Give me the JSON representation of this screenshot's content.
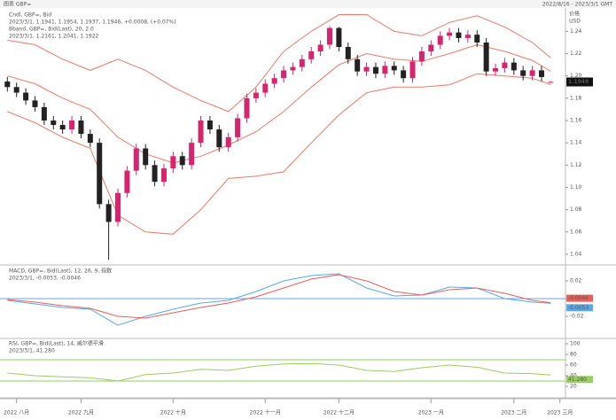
{
  "header": {
    "left": "图表 GBP=",
    "right": "2022/8/16 - 2023/3/1 GMT"
  },
  "chart_data": [
    {
      "type": "candlestick",
      "title": "Cndl, GBP=, Bid",
      "subtitle": "2023/3/1, 1.1941, 1.1954, 1.1937, 1.1946, +0.0008, (+0.07%)",
      "axis_label": "价格",
      "axis_unit": "USD",
      "price_tag": "1.1949",
      "up_color": "#d6246e",
      "down_color": "#222222",
      "xlim": [
        -0.8,
        60.6
      ],
      "ylim": [
        1.032,
        1.257
      ],
      "yticks": [
        {
          "value": 1.04,
          "label": "1.04"
        },
        {
          "value": 1.06,
          "label": "1.06"
        },
        {
          "value": 1.08,
          "label": "1.08"
        },
        {
          "value": 1.1,
          "label": "1.10"
        },
        {
          "value": 1.12,
          "label": "1.12"
        },
        {
          "value": 1.14,
          "label": "1.14"
        },
        {
          "value": 1.16,
          "label": "1.16"
        },
        {
          "value": 1.18,
          "label": "1.18"
        },
        {
          "value": 1.2,
          "label": "1.20"
        },
        {
          "value": 1.22,
          "label": "1.22"
        },
        {
          "value": 1.24,
          "label": "1.24"
        }
      ],
      "xticks": [
        {
          "value": 1,
          "label": "2022 八月"
        },
        {
          "value": 8,
          "label": "2022 九月"
        },
        {
          "value": 18,
          "label": "2022 十月"
        },
        {
          "value": 28,
          "label": "2022 十一月"
        },
        {
          "value": 36,
          "label": "2022 十二月"
        },
        {
          "value": 46,
          "label": "2023 一月"
        },
        {
          "value": 55,
          "label": "2023 二月"
        },
        {
          "value": 60,
          "label": "2023 三月"
        }
      ],
      "open": [
        1.195,
        1.19,
        1.185,
        1.178,
        1.172,
        1.16,
        1.156,
        1.152,
        1.16,
        1.148,
        1.14,
        1.085,
        1.069,
        1.095,
        1.115,
        1.135,
        1.12,
        1.105,
        1.117,
        1.128,
        1.12,
        1.14,
        1.16,
        1.152,
        1.136,
        1.145,
        1.162,
        1.18,
        1.185,
        1.193,
        1.198,
        1.205,
        1.208,
        1.215,
        1.222,
        1.228,
        1.243,
        1.226,
        1.215,
        1.204,
        1.208,
        1.202,
        1.209,
        1.205,
        1.198,
        1.213,
        1.222,
        1.228,
        1.236,
        1.239,
        1.234,
        1.237,
        1.23,
        1.204,
        1.207,
        1.212,
        1.205,
        1.2,
        1.205,
        1.1941
      ],
      "high": [
        1.199,
        1.194,
        1.189,
        1.182,
        1.176,
        1.164,
        1.16,
        1.164,
        1.164,
        1.152,
        1.144,
        1.089,
        1.099,
        1.119,
        1.139,
        1.139,
        1.124,
        1.121,
        1.132,
        1.132,
        1.144,
        1.164,
        1.164,
        1.156,
        1.149,
        1.166,
        1.184,
        1.189,
        1.197,
        1.202,
        1.209,
        1.212,
        1.219,
        1.226,
        1.232,
        1.2447,
        1.244,
        1.23,
        1.219,
        1.212,
        1.212,
        1.213,
        1.213,
        1.209,
        1.217,
        1.226,
        1.232,
        1.24,
        1.243,
        1.243,
        1.241,
        1.241,
        1.234,
        1.211,
        1.216,
        1.216,
        1.209,
        1.209,
        1.209,
        1.1954
      ],
      "low": [
        1.186,
        1.181,
        1.174,
        1.168,
        1.156,
        1.152,
        1.148,
        1.148,
        1.144,
        1.136,
        1.081,
        1.035,
        1.065,
        1.091,
        1.111,
        1.116,
        1.101,
        1.101,
        1.113,
        1.116,
        1.116,
        1.136,
        1.148,
        1.132,
        1.132,
        1.141,
        1.158,
        1.176,
        1.181,
        1.189,
        1.194,
        1.201,
        1.204,
        1.211,
        1.218,
        1.224,
        1.222,
        1.211,
        1.2,
        1.2,
        1.198,
        1.198,
        1.201,
        1.194,
        1.194,
        1.209,
        1.218,
        1.224,
        1.232,
        1.23,
        1.23,
        1.226,
        1.2,
        1.2,
        1.203,
        1.201,
        1.196,
        1.196,
        1.195,
        1.1937
      ],
      "close": [
        1.19,
        1.185,
        1.178,
        1.172,
        1.16,
        1.156,
        1.152,
        1.16,
        1.148,
        1.14,
        1.085,
        1.069,
        1.095,
        1.115,
        1.135,
        1.12,
        1.105,
        1.117,
        1.128,
        1.12,
        1.14,
        1.16,
        1.152,
        1.136,
        1.145,
        1.162,
        1.18,
        1.185,
        1.193,
        1.198,
        1.205,
        1.208,
        1.215,
        1.222,
        1.228,
        1.243,
        1.226,
        1.215,
        1.204,
        1.208,
        1.202,
        1.209,
        1.205,
        1.198,
        1.213,
        1.222,
        1.228,
        1.236,
        1.239,
        1.234,
        1.237,
        1.23,
        1.204,
        1.207,
        1.212,
        1.205,
        1.2,
        1.205,
        1.199,
        1.1946
      ],
      "overlay": {
        "name": "Bband, GBP=, Bid(Last), 20, 2.0",
        "value_text": "2023/3/1, 1.2161, 1.2041, 1.1922",
        "color": "#f07868",
        "x": [
          0,
          3,
          6,
          9,
          12,
          15,
          18,
          21,
          24,
          27,
          30,
          33,
          36,
          39,
          42,
          45,
          48,
          51,
          54,
          57,
          59
        ],
        "lines": [
          {
            "values": [
              1.232,
              1.228,
              1.215,
              1.205,
              1.215,
              1.205,
              1.19,
              1.178,
              1.168,
              1.19,
              1.222,
              1.24,
              1.255,
              1.255,
              1.24,
              1.236,
              1.248,
              1.254,
              1.244,
              1.23,
              1.2161
            ]
          },
          {
            "values": [
              1.2,
              1.193,
              1.18,
              1.17,
              1.145,
              1.13,
              1.122,
              1.128,
              1.138,
              1.15,
              1.168,
              1.19,
              1.21,
              1.22,
              1.215,
              1.213,
              1.22,
              1.228,
              1.222,
              1.214,
              1.2041
            ]
          },
          {
            "values": [
              1.168,
              1.158,
              1.145,
              1.135,
              1.075,
              1.06,
              1.058,
              1.08,
              1.108,
              1.11,
              1.114,
              1.14,
              1.165,
              1.185,
              1.19,
              1.19,
              1.192,
              1.202,
              1.2,
              1.198,
              1.1922
            ]
          }
        ]
      }
    },
    {
      "type": "line",
      "title": "MACD, GBP=, Bid(Last), 12, 26, 9, 指数",
      "subtitle": "2023/3/1, -0.0053, -0.0046",
      "title_color": "#3a8fd8",
      "xlim": [
        -0.8,
        60.6
      ],
      "ylim": [
        -0.043,
        0.035
      ],
      "yticks": [
        -0.02,
        0,
        0.02
      ],
      "hlines": [
        0
      ],
      "hline_color": "#6aa6de",
      "x": [
        0,
        3,
        6,
        9,
        12,
        15,
        18,
        21,
        24,
        27,
        30,
        33,
        36,
        39,
        42,
        45,
        48,
        51,
        54,
        57,
        59
      ],
      "series": [
        {
          "color": "#5aa9e6",
          "last_label": "-0.0053",
          "values": [
            -0.002,
            -0.006,
            -0.01,
            -0.012,
            -0.03,
            -0.02,
            -0.012,
            -0.005,
            -0.002,
            0.008,
            0.02,
            0.026,
            0.028,
            0.012,
            0.003,
            0.004,
            0.013,
            0.012,
            0.0,
            -0.004,
            -0.0053
          ]
        },
        {
          "color": "#e8605a",
          "last_label": "-0.0046",
          "values": [
            -0.001,
            -0.004,
            -0.008,
            -0.011,
            -0.02,
            -0.022,
            -0.016,
            -0.01,
            -0.005,
            0.002,
            0.012,
            0.022,
            0.027,
            0.02,
            0.008,
            0.004,
            0.01,
            0.012,
            0.006,
            -0.002,
            -0.0046
          ]
        }
      ]
    },
    {
      "type": "line",
      "title": "RSI, GBP=, Bid(Last), 14, 威尔德平滑",
      "subtitle": "2023/3/1, 41.280",
      "title_color": "#6aa830",
      "xlim": [
        -0.8,
        60.6
      ],
      "ylim": [
        1.7,
        106.7
      ],
      "yticks": [
        20,
        40,
        60,
        80,
        100
      ],
      "hlines": [
        30,
        70
      ],
      "hline_color": "#8fcf60",
      "x": [
        0,
        3,
        6,
        9,
        12,
        15,
        18,
        21,
        24,
        27,
        30,
        33,
        36,
        39,
        42,
        45,
        48,
        51,
        54,
        57,
        59
      ],
      "series": [
        {
          "color": "#9acd60",
          "last_label": "41.280",
          "values": [
            45,
            40,
            38,
            36,
            30,
            42,
            45,
            52,
            50,
            58,
            62,
            63,
            60,
            50,
            48,
            55,
            60,
            56,
            45,
            44,
            41.28
          ]
        }
      ]
    }
  ]
}
